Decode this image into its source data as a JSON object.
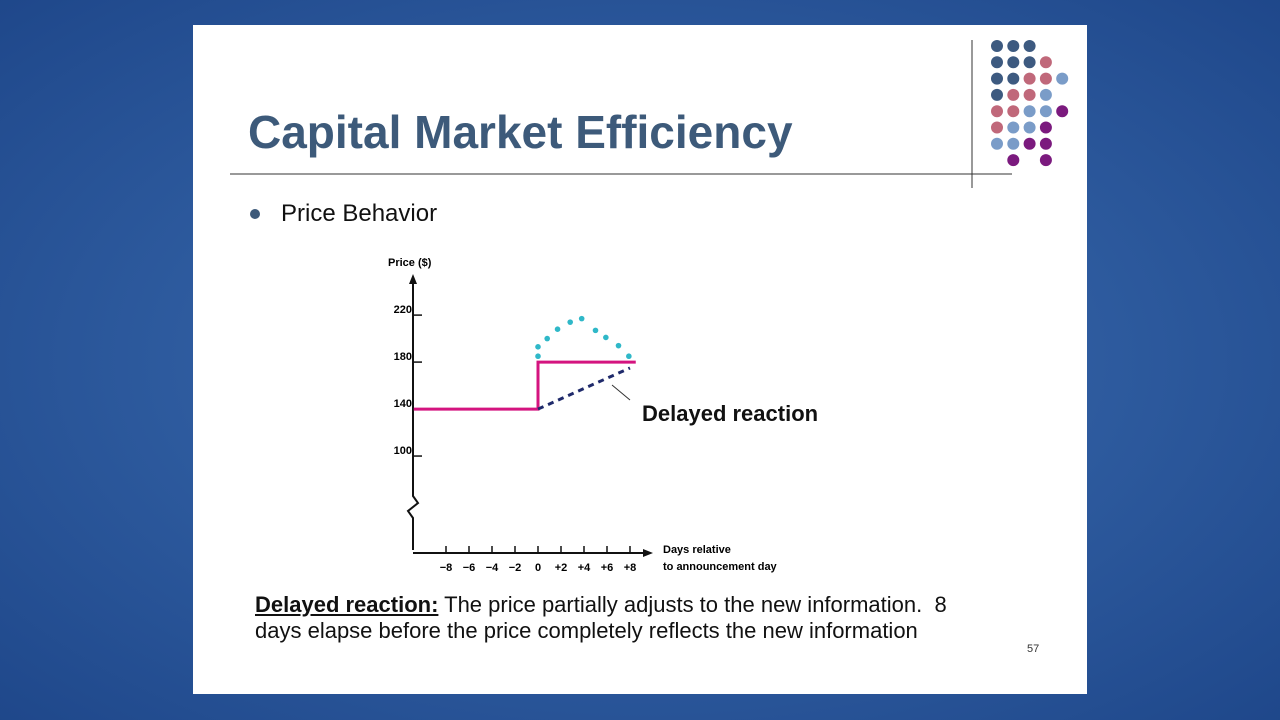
{
  "slide": {
    "title": "Capital Market Efficiency",
    "bullet": "Price Behavior",
    "chart": {
      "type": "line",
      "y_label": "Price ($)",
      "x_label": [
        "Days relative",
        "to announcement day"
      ],
      "xlim": [
        -11,
        10
      ],
      "ylim": [
        20,
        255
      ],
      "xticks": [
        {
          "value": -8,
          "label": "−8"
        },
        {
          "value": -6,
          "label": "−6"
        },
        {
          "value": -4,
          "label": "−4"
        },
        {
          "value": -2,
          "label": "−2"
        },
        0,
        {
          "value": 2,
          "label": "+2"
        },
        {
          "value": 4,
          "label": "+4"
        },
        {
          "value": 6,
          "label": "+6"
        },
        {
          "value": 8,
          "label": "+8"
        }
      ],
      "yticks": [
        100,
        140,
        180,
        220
      ],
      "series": [
        {
          "style": "solid",
          "color": "#d4147f",
          "x": [
            -10.8,
            0,
            0,
            8.5
          ],
          "values": [
            140,
            140,
            180,
            180
          ]
        },
        {
          "style": "dotted",
          "color": "#2fb8c8",
          "x": [
            0,
            0,
            0.8,
            1.7,
            2.8,
            3.8,
            5,
            5.9,
            7,
            7.9
          ],
          "values": [
            185,
            193,
            200,
            208,
            214,
            217,
            207,
            201,
            194,
            185
          ]
        },
        {
          "style": "dashed",
          "color": "#1f2a6b",
          "x": [
            0,
            8
          ],
          "values": [
            140,
            175
          ]
        }
      ],
      "annotation": "Delayed reaction"
    },
    "caption": {
      "term": "Delayed reaction:",
      "text": "The price partially adjusts to the new information.  8 days elapse before the price completely reflects the new information"
    },
    "page_number": "57"
  }
}
